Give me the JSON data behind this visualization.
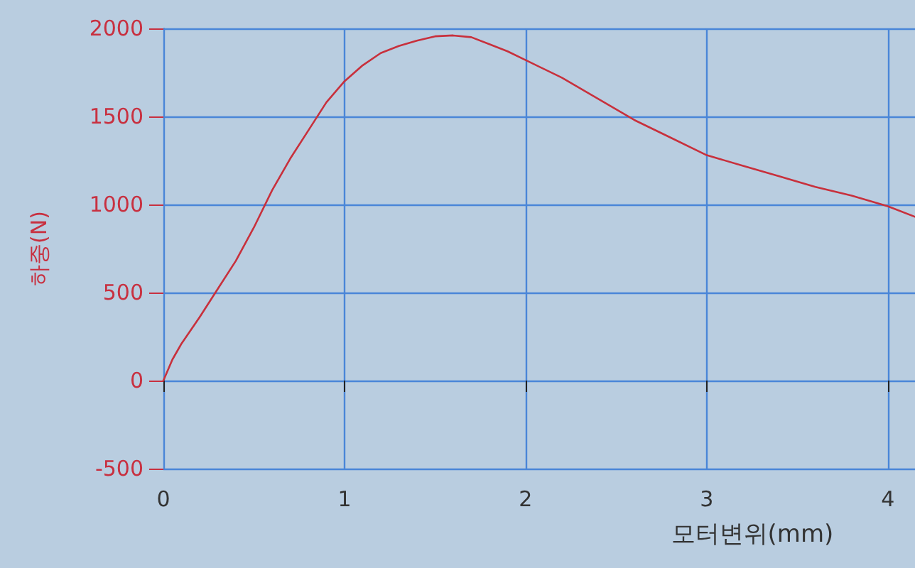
{
  "chart_data": {
    "type": "line",
    "xlabel": "모터변위(mm)",
    "ylabel": "하중(N)",
    "x": [
      0,
      0.05,
      0.1,
      0.2,
      0.3,
      0.4,
      0.5,
      0.6,
      0.7,
      0.8,
      0.9,
      1.0,
      1.1,
      1.2,
      1.3,
      1.4,
      1.5,
      1.6,
      1.7,
      1.8,
      1.9,
      2.0,
      2.2,
      2.4,
      2.6,
      2.8,
      3.0,
      3.2,
      3.4,
      3.6,
      3.8,
      4.0,
      4.15
    ],
    "series": [
      {
        "color": "#c8303c",
        "values": [
          0,
          120,
          210,
          360,
          520,
          680,
          870,
          1080,
          1260,
          1420,
          1580,
          1700,
          1790,
          1860,
          1900,
          1930,
          1955,
          1960,
          1950,
          1910,
          1870,
          1820,
          1720,
          1600,
          1480,
          1380,
          1280,
          1220,
          1160,
          1100,
          1050,
          990,
          930
        ]
      }
    ],
    "xlim": [
      0,
      4.15
    ],
    "xticks": [
      0,
      1,
      2,
      3,
      4
    ],
    "ylim": [
      -500,
      2000
    ],
    "yticks": [
      -500,
      0,
      500,
      1000,
      1500,
      2000
    ],
    "grid": true,
    "marker": "none",
    "line_style": "solid"
  }
}
